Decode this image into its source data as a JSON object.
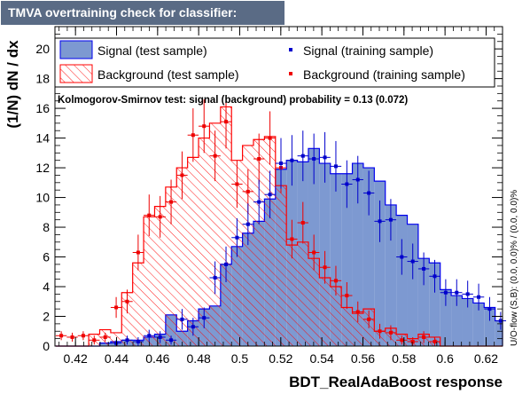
{
  "window_title": "TMVA overtraining check for classifier: BDT_RealAdaBoost",
  "ks_text": "Kolmogorov-Smirnov test: signal (background) probability =  0.13 (0.072)",
  "overflow_text": "U/O-flow (S,B): (0.0, 0.0)% / (0.0, 0.0)%",
  "colors": {
    "signal_fill": "#7d99d1",
    "signal_line": "#0000ee",
    "signal_marker": "#0000cc",
    "background_line": "#ff0000",
    "background_marker": "#ee0000",
    "title_bg": "#5a6b85"
  },
  "chart_data": {
    "type": "histogram",
    "xlabel": "BDT_RealAdaBoost response",
    "ylabel": "(1/N) dN / dx",
    "xlim": [
      0.41,
      0.628
    ],
    "ylim": [
      0,
      21.5
    ],
    "x_ticks": [
      "0.42",
      "0.44",
      "0.46",
      "0.48",
      "0.5",
      "0.52",
      "0.54",
      "0.56",
      "0.58",
      "0.6",
      "0.62"
    ],
    "y_ticks": [
      "0",
      "2",
      "4",
      "6",
      "8",
      "10",
      "12",
      "14",
      "16",
      "18",
      "20"
    ],
    "bin_start": 0.4104,
    "bin_width": 0.00535,
    "legend": [
      {
        "key": "sig_test",
        "label": "Signal (test sample)"
      },
      {
        "key": "sig_train",
        "label": "Signal (training sample)"
      },
      {
        "key": "bkg_test",
        "label": "Background (test sample)"
      },
      {
        "key": "bkg_train",
        "label": "Background (training sample)"
      }
    ],
    "series": [
      {
        "name": "Signal (test sample)",
        "key": "sig_test",
        "values": [
          0,
          0,
          0,
          0,
          0.2,
          0.3,
          0.4,
          0.4,
          0.6,
          0.8,
          2.1,
          1.0,
          1.7,
          2.5,
          2.7,
          5.5,
          6.7,
          7.6,
          8.4,
          9.9,
          11.9,
          12.5,
          12.4,
          13.3,
          12.3,
          11.6,
          11.6,
          12.3,
          12.0,
          11.1,
          9.5,
          8.8,
          8.2,
          5.9,
          5.6,
          3.8,
          3.4,
          3.2,
          2.9,
          2.6,
          1.7,
          1.4,
          1.2,
          0.8,
          0.4,
          0.3,
          0.8,
          0.5,
          0.2,
          0.1,
          0.2,
          0.1,
          0.4
        ]
      },
      {
        "name": "Background (test sample)",
        "key": "bkg_test",
        "values": [
          0,
          0,
          0,
          0.8,
          1.1,
          0.9,
          3.6,
          5.6,
          8.7,
          9.4,
          10.7,
          12.0,
          12.7,
          14.0,
          15.0,
          16.1,
          12.5,
          13.5,
          13.9,
          14.1,
          10.8,
          6.8,
          7.0,
          5.9,
          4.6,
          4.0,
          2.6,
          2.2,
          2.5,
          1.0,
          1.2,
          0.8,
          0.5,
          0.8,
          0.6,
          0.0,
          0,
          0,
          0,
          0,
          0,
          0,
          0,
          0,
          0,
          0,
          0,
          0,
          0,
          0,
          0,
          0,
          0
        ]
      },
      {
        "name": "Signal (training sample)",
        "key": "sig_train",
        "values": [
          null,
          null,
          null,
          null,
          null,
          0.2,
          0.4,
          0.3,
          0.7,
          0.6,
          0.4,
          1.8,
          1.3,
          1.9,
          4.6,
          5.5,
          7.3,
          8.2,
          9.7,
          10.2,
          12.3,
          12.5,
          12.8,
          12.6,
          12.7,
          12.1,
          10.9,
          11.2,
          10.3,
          8.4,
          8.5,
          6.0,
          5.7,
          5.2,
          4.7,
          3.6,
          3.6,
          3.5,
          3.3,
          2.5,
          1.7,
          1.4,
          1.1,
          0.8,
          0.6,
          0.9,
          0.7,
          0.4,
          0.3,
          0.2,
          0.1,
          0.2,
          0.4
        ],
        "errors": [
          0,
          0,
          0,
          0,
          0,
          0.2,
          0.3,
          0.3,
          0.4,
          0.4,
          0.3,
          0.7,
          0.6,
          0.7,
          1.1,
          1.2,
          1.3,
          1.4,
          1.5,
          1.6,
          1.7,
          1.7,
          1.7,
          1.7,
          1.7,
          1.7,
          1.6,
          1.6,
          1.5,
          1.4,
          1.4,
          1.2,
          1.2,
          1.1,
          1.1,
          0.9,
          0.9,
          0.9,
          0.9,
          0.8,
          0.6,
          0.6,
          0.5,
          0.4,
          0.4,
          0.5,
          0.4,
          0.3,
          0.3,
          0.2,
          0.2,
          0.2,
          0.3
        ]
      },
      {
        "name": "Background (training sample)",
        "key": "bkg_train",
        "values": [
          0.7,
          0.6,
          0.7,
          0.4,
          0.6,
          2.6,
          3.0,
          6.3,
          8.8,
          8.7,
          9.7,
          11.5,
          14.2,
          14.8,
          12.8,
          15.1,
          10.9,
          10.4,
          12.6,
          14.0,
          12.0,
          7.2,
          8.3,
          6.3,
          5.3,
          4.4,
          3.4,
          2.3,
          1.8,
          1.0,
          0.9,
          0.4,
          0.3,
          0.6,
          0.3,
          0,
          0,
          0,
          0,
          0,
          0,
          0,
          0,
          0,
          0,
          0,
          0,
          0,
          0,
          0,
          0,
          0,
          0
        ],
        "errors": [
          0.3,
          0.3,
          0.3,
          0.3,
          0.3,
          0.7,
          0.8,
          1.2,
          1.4,
          1.4,
          1.5,
          1.6,
          1.8,
          1.8,
          1.7,
          1.8,
          1.6,
          1.5,
          1.7,
          1.8,
          1.7,
          1.3,
          1.4,
          1.2,
          1.1,
          1.0,
          0.9,
          0.7,
          0.6,
          0.5,
          0.5,
          0.3,
          0.3,
          0.4,
          0.3,
          0,
          0,
          0,
          0,
          0,
          0,
          0,
          0,
          0,
          0,
          0,
          0,
          0,
          0,
          0,
          0,
          0,
          0
        ]
      }
    ]
  }
}
